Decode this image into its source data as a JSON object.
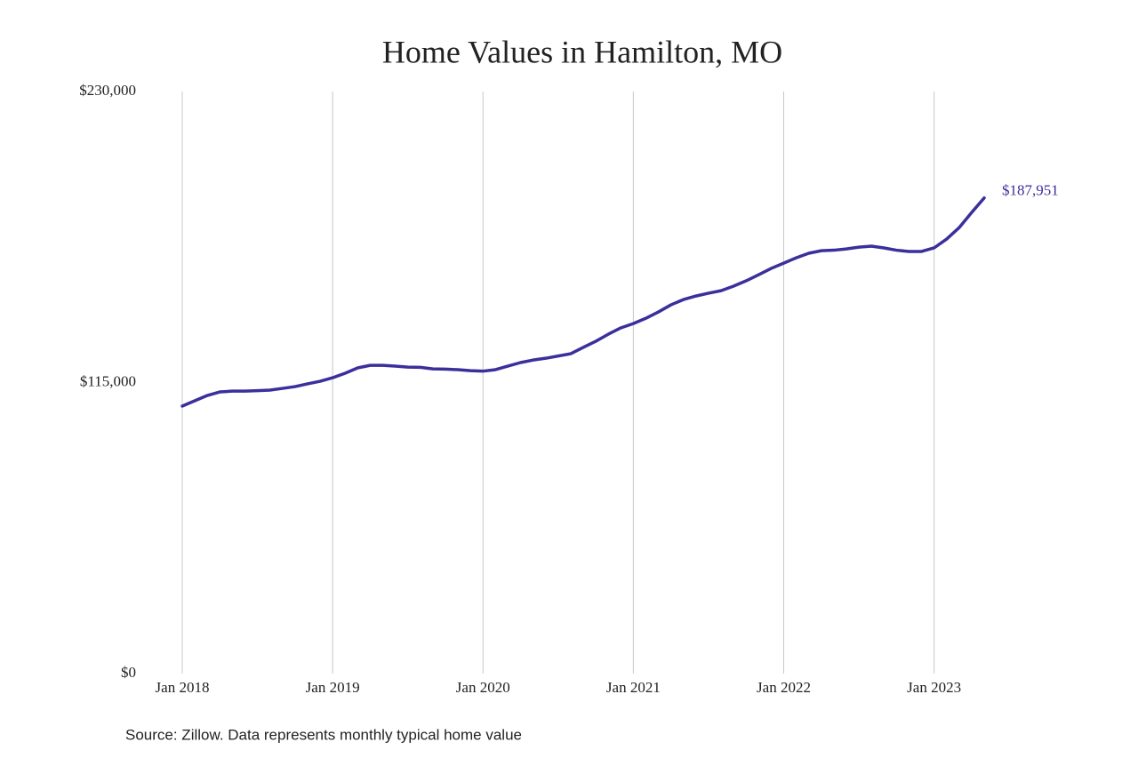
{
  "chart_data": {
    "type": "line",
    "title": "Home Values in Hamilton, MO",
    "source": "Source: Zillow. Data represents monthly typical home value",
    "x": [
      "2018-01",
      "2018-02",
      "2018-03",
      "2018-04",
      "2018-05",
      "2018-06",
      "2018-07",
      "2018-08",
      "2018-09",
      "2018-10",
      "2018-11",
      "2018-12",
      "2019-01",
      "2019-02",
      "2019-03",
      "2019-04",
      "2019-05",
      "2019-06",
      "2019-07",
      "2019-08",
      "2019-09",
      "2019-10",
      "2019-11",
      "2019-12",
      "2020-01",
      "2020-02",
      "2020-03",
      "2020-04",
      "2020-05",
      "2020-06",
      "2020-07",
      "2020-08",
      "2020-09",
      "2020-10",
      "2020-11",
      "2020-12",
      "2021-01",
      "2021-02",
      "2021-03",
      "2021-04",
      "2021-05",
      "2021-06",
      "2021-07",
      "2021-08",
      "2021-09",
      "2021-10",
      "2021-11",
      "2021-12",
      "2022-01",
      "2022-02",
      "2022-03",
      "2022-04",
      "2022-05",
      "2022-06",
      "2022-07",
      "2022-08",
      "2022-09",
      "2022-10",
      "2022-11",
      "2022-12",
      "2023-01",
      "2023-02",
      "2023-03",
      "2023-04",
      "2023-05"
    ],
    "series": [
      {
        "name": "Typical home value",
        "color": "#3b2f9c",
        "values": [
          105700,
          107800,
          109900,
          111300,
          111600,
          111600,
          111800,
          112000,
          112700,
          113400,
          114500,
          115500,
          116900,
          118700,
          120800,
          121800,
          121800,
          121500,
          121100,
          121000,
          120400,
          120300,
          120100,
          119700,
          119500,
          120100,
          121500,
          122900,
          123900,
          124600,
          125500,
          126400,
          128900,
          131300,
          134100,
          136600,
          138300,
          140400,
          142900,
          145700,
          147800,
          149200,
          150300,
          151300,
          153100,
          155200,
          157600,
          160100,
          162200,
          164300,
          166100,
          167100,
          167300,
          167800,
          168500,
          168900,
          168200,
          167300,
          166800,
          166800,
          168200,
          171700,
          176200,
          182200,
          187951
        ],
        "value_labels": [
          null,
          null,
          null,
          null,
          null,
          null,
          null,
          null,
          null,
          null,
          null,
          null,
          null,
          null,
          null,
          null,
          null,
          null,
          null,
          null,
          null,
          null,
          null,
          null,
          null,
          null,
          null,
          null,
          null,
          null,
          null,
          null,
          null,
          null,
          null,
          null,
          null,
          null,
          null,
          null,
          null,
          null,
          null,
          null,
          null,
          null,
          null,
          null,
          null,
          null,
          null,
          null,
          null,
          null,
          null,
          null,
          null,
          null,
          null,
          null,
          null,
          null,
          null,
          null,
          "$187,951"
        ]
      }
    ],
    "xlim": [
      "2018-01",
      "2023-05"
    ],
    "xticks": [
      {
        "value": "2018-01",
        "label": "Jan 2018"
      },
      {
        "value": "2019-01",
        "label": "Jan 2019"
      },
      {
        "value": "2020-01",
        "label": "Jan 2020"
      },
      {
        "value": "2021-01",
        "label": "Jan 2021"
      },
      {
        "value": "2022-01",
        "label": "Jan 2022"
      },
      {
        "value": "2023-01",
        "label": "Jan 2023"
      }
    ],
    "ylim": [
      0,
      230000
    ],
    "yticks": [
      {
        "value": 0,
        "label": "$0"
      },
      {
        "value": 115000,
        "label": "$115,000"
      },
      {
        "value": 230000,
        "label": "$230,000"
      }
    ],
    "grid": "x"
  }
}
